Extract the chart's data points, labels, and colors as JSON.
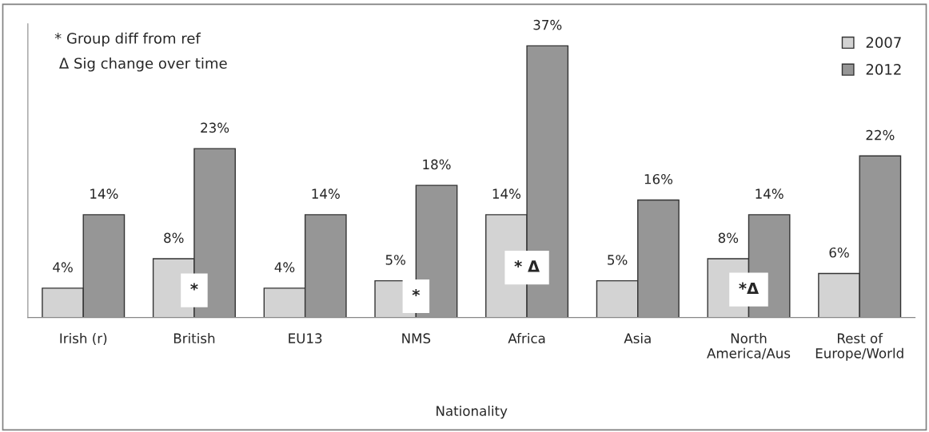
{
  "chart_data": {
    "type": "bar",
    "categories": [
      "Irish (r)",
      "British",
      "EU13",
      "NMS",
      "Africa",
      "Asia",
      "North\nAmerica/Aus",
      "Rest of\nEurope/World"
    ],
    "series": [
      {
        "name": "2007",
        "color": "#d3d3d3",
        "values": [
          4,
          8,
          4,
          5,
          14,
          5,
          8,
          6
        ],
        "value_labels": [
          "4%",
          "8%",
          "4%",
          "5%",
          "14%",
          "5%",
          "8%",
          "6%"
        ]
      },
      {
        "name": "2012",
        "color": "#969696",
        "values": [
          14,
          23,
          14,
          18,
          37,
          16,
          14,
          22
        ],
        "value_labels": [
          "14%",
          "23%",
          "14%",
          "18%",
          "37%",
          "16%",
          "14%",
          "22%"
        ]
      }
    ],
    "xlabel": "Nationality",
    "ylim": [
      0,
      40
    ],
    "tick_labels": "x",
    "legend": "top right",
    "grid": false,
    "annotations": [
      "* Group diff from ref",
      " Δ Sig change over time",
      {
        "text": "*",
        "x": "British",
        "y": 3.7
      },
      {
        "text": "*",
        "x": "NMS",
        "y": 2.9
      },
      {
        "text": "* Δ",
        "x": "Africa",
        "y": 6.8
      },
      {
        "text": "*Δ",
        "x": "North\nAmerica/Aus",
        "y": 3.8
      }
    ]
  }
}
